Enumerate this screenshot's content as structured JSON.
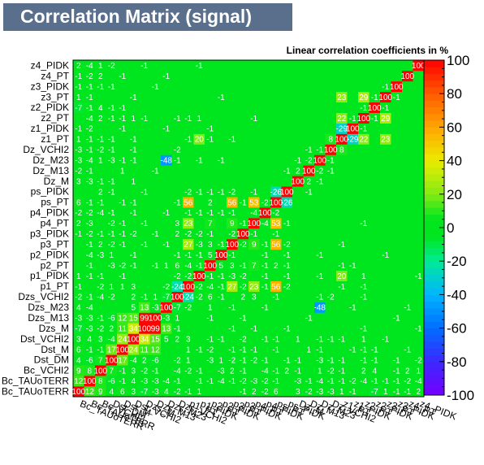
{
  "chart_data": {
    "type": "heatmap",
    "title": "Correlation Matrix (signal)",
    "subtitle": "Linear correlation coefficients in %",
    "variables": [
      "Bc_TAUoTERR",
      "Bc_TAUoTERR",
      "Bc_VCHI2",
      "Dst_DM",
      "Dst_M",
      "Dst_VCHI2",
      "Dzs_M",
      "Dzs_M13",
      "Dzs_M23",
      "Dzs_VCHI2",
      "p1_PT",
      "p1_PIDK",
      "p2_PT",
      "p2_PIDK",
      "p3_PT",
      "p3_PIDK",
      "p4_PT",
      "p4_PIDK",
      "ps_PT",
      "ps_PIDK",
      "Dz_M",
      "Dz_M13",
      "Dz_M23",
      "Dz_VCHI2",
      "z1_PT",
      "z1_PIDK",
      "z2_PT",
      "z2_PIDK",
      "z3_PT",
      "z3_PIDK",
      "z4_PT",
      "z4_PIDK"
    ],
    "y_tick_labels": [
      "z4_PIDK",
      "z4_PT",
      "z3_PIDK",
      "z3_PT",
      "z2_PIDK",
      "z2_PT",
      "z1_PIDK",
      "z1_PT",
      "Dz_VCHI2",
      "Dz_M23",
      "Dz_M13",
      "Dz_M",
      "ps_PIDK",
      "ps_PT",
      "p4_PIDK",
      "p4_PT",
      "p3_PIDK",
      "p3_PT",
      "p2_PIDK",
      "p2_PT",
      "p1_PIDK",
      "p1_PT",
      "Dzs_VCHI2",
      "Dzs_M23",
      "Dzs_M13",
      "Dzs_M",
      "Dst_VCHI2",
      "Dst_M",
      "Dst_DM",
      "Bc_VCHI2",
      "Bc_TAUoTERR",
      "Bc_TAUoTERR"
    ],
    "x_tick_labels": [
      "Bc_TAUoTERR",
      "Bc_TAUoTERR",
      "Bc_VCHI2",
      "Dst_DM",
      "Dst_M",
      "Dst_VCHI2",
      "Dzs_M",
      "Dzs_M13",
      "Dzs_M23",
      "Dzs_VCHI2",
      "p1_PT",
      "p1_PIDK",
      "p2_PT",
      "p2_PIDK",
      "p3_PT",
      "p3_PIDK",
      "p4_PT",
      "p4_PIDK",
      "ps_PT",
      "ps_PIDK",
      "Dz_M",
      "Dz_M13",
      "Dz_M23",
      "Dz_VCHI2",
      "z1_PT",
      "z1_PIDK",
      "z2_PT",
      "z2_PIDK",
      "z3_PT",
      "z3_PIDK",
      "z4_PT",
      "z4_PIDK"
    ],
    "zlim": [
      -100,
      100
    ],
    "colorbar_ticks": [
      100,
      80,
      60,
      40,
      20,
      0,
      -20,
      -40,
      -60,
      -80,
      -100
    ],
    "values": [
      [
        100,
        12,
        9,
        4,
        6,
        3,
        -7,
        -3,
        4,
        -2,
        -1,
        1,
        0,
        0,
        0,
        -1,
        2,
        -2,
        6,
        0,
        3,
        -2,
        -3,
        -3,
        1,
        -1,
        0,
        -7,
        1,
        -1,
        -1,
        2
      ],
      [
        12,
        100,
        8,
        -6,
        -1,
        4,
        -3,
        -3,
        -4,
        -1,
        0,
        -1,
        -1,
        -4,
        -1,
        -2,
        -3,
        -2,
        -1,
        0,
        -3,
        -1,
        -4,
        -1,
        -1,
        -2,
        -4,
        -1,
        -1,
        -1,
        -2,
        -4
      ],
      [
        9,
        8,
        100,
        7,
        -1,
        3,
        -2,
        -1,
        0,
        -4,
        -2,
        -1,
        0,
        -3,
        2,
        -1,
        0,
        -4,
        -1,
        2,
        -1,
        0,
        1,
        -2,
        -1,
        0,
        2,
        4,
        0,
        -1,
        2,
        1
      ],
      [
        4,
        -6,
        7,
        100,
        17,
        -4,
        2,
        -6,
        0,
        -2,
        1,
        0,
        -3,
        1,
        -2,
        -1,
        -2,
        -1,
        0,
        -1,
        -1,
        0,
        -3,
        -1,
        -1,
        0,
        -1,
        -1,
        0,
        -1,
        0,
        -2
      ],
      [
        6,
        -1,
        -1,
        17,
        100,
        24,
        11,
        12,
        0,
        0,
        1,
        -1,
        -2,
        0,
        -1,
        -1,
        -1,
        0,
        -1,
        0,
        0,
        1,
        -1,
        0,
        0,
        -1,
        -1,
        -1,
        0,
        0,
        -1,
        0
      ],
      [
        3,
        4,
        3,
        -4,
        24,
        100,
        34,
        15,
        5,
        2,
        3,
        0,
        -1,
        -1,
        0,
        -2,
        0,
        -1,
        -1,
        0,
        1,
        0,
        -1,
        -1,
        -1,
        0,
        1,
        0,
        -1,
        0,
        0,
        0
      ],
      [
        -7,
        -3,
        -2,
        2,
        11,
        34,
        100,
        99,
        13,
        -1,
        0,
        0,
        0,
        0,
        -1,
        0,
        -1,
        0,
        0,
        -1,
        0,
        0,
        0,
        0,
        0,
        0,
        -1,
        0,
        0,
        0,
        0,
        -1
      ],
      [
        -3,
        -3,
        -1,
        -6,
        12,
        15,
        99,
        100,
        -3,
        1,
        0,
        0,
        -1,
        0,
        0,
        -1,
        0,
        0,
        0,
        0,
        0,
        -1,
        0,
        0,
        0,
        0,
        0,
        0,
        0,
        -1,
        0,
        0
      ],
      [
        4,
        -4,
        0,
        0,
        0,
        5,
        13,
        -3,
        100,
        -7,
        -2,
        0,
        1,
        0,
        -1,
        0,
        0,
        -1,
        0,
        0,
        0,
        0,
        -48,
        0,
        0,
        -1,
        0,
        0,
        0,
        0,
        -1,
        0
      ],
      [
        -2,
        -1,
        -4,
        -2,
        0,
        2,
        -1,
        1,
        -7,
        100,
        -24,
        -2,
        6,
        -1,
        0,
        2,
        3,
        0,
        -1,
        0,
        0,
        0,
        -1,
        -2,
        0,
        0,
        -1,
        0,
        0,
        0,
        0,
        0
      ],
      [
        -1,
        0,
        -2,
        1,
        1,
        3,
        0,
        0,
        -2,
        -24,
        100,
        -2,
        -4,
        -1,
        27,
        -2,
        23,
        -1,
        56,
        -2,
        0,
        0,
        0,
        0,
        -1,
        0,
        -1,
        0,
        0,
        0,
        0,
        0
      ],
      [
        1,
        -1,
        -1,
        0,
        -1,
        0,
        0,
        0,
        0,
        -2,
        -2,
        100,
        -1,
        -1,
        -3,
        -2,
        0,
        -1,
        0,
        -1,
        0,
        0,
        -1,
        0,
        20,
        0,
        1,
        0,
        0,
        0,
        0,
        -1
      ],
      [
        0,
        -1,
        0,
        -3,
        -2,
        -1,
        0,
        -1,
        1,
        6,
        -4,
        -1,
        100,
        5,
        3,
        -1,
        7,
        -1,
        2,
        -1,
        0,
        0,
        0,
        0,
        -1,
        -1,
        0,
        0,
        0,
        0,
        0,
        0
      ],
      [
        0,
        -4,
        -3,
        1,
        0,
        -1,
        0,
        0,
        0,
        -1,
        -1,
        -1,
        5,
        100,
        -1,
        0,
        0,
        -1,
        0,
        -1,
        0,
        0,
        -1,
        0,
        0,
        0,
        0,
        0,
        -1,
        0,
        0,
        0
      ],
      [
        0,
        -1,
        2,
        -2,
        -1,
        0,
        -1,
        0,
        -1,
        0,
        27,
        -3,
        3,
        -1,
        100,
        -2,
        9,
        -1,
        56,
        -2,
        0,
        0,
        0,
        0,
        -1,
        0,
        0,
        0,
        0,
        0,
        0,
        0
      ],
      [
        -1,
        -2,
        -1,
        -1,
        -1,
        -2,
        0,
        -1,
        0,
        2,
        -2,
        -2,
        -1,
        0,
        -2,
        100,
        -1,
        0,
        -1,
        0,
        0,
        0,
        0,
        0,
        0,
        0,
        0,
        0,
        0,
        0,
        0,
        0
      ],
      [
        2,
        -3,
        0,
        -2,
        -1,
        0,
        -1,
        0,
        0,
        3,
        23,
        0,
        7,
        0,
        9,
        -1,
        100,
        -4,
        53,
        -1,
        0,
        0,
        0,
        0,
        0,
        0,
        -1,
        0,
        0,
        0,
        0,
        0
      ],
      [
        -2,
        -2,
        -4,
        -1,
        0,
        -1,
        0,
        0,
        -1,
        0,
        -1,
        -1,
        -1,
        -1,
        -1,
        0,
        -4,
        100,
        -2,
        0,
        0,
        0,
        0,
        0,
        0,
        0,
        0,
        0,
        0,
        0,
        0,
        0
      ],
      [
        6,
        -1,
        -1,
        0,
        -1,
        -1,
        0,
        0,
        0,
        -1,
        56,
        0,
        2,
        0,
        56,
        -1,
        53,
        -2,
        100,
        -26,
        0,
        0,
        0,
        0,
        0,
        0,
        0,
        0,
        0,
        0,
        0,
        0
      ],
      [
        0,
        0,
        2,
        -1,
        0,
        0,
        -1,
        0,
        0,
        0,
        -2,
        -1,
        -1,
        -1,
        -2,
        0,
        -1,
        0,
        -26,
        100,
        0,
        -1,
        0,
        0,
        0,
        0,
        0,
        0,
        0,
        0,
        0,
        0
      ],
      [
        3,
        -3,
        -1,
        -1,
        0,
        1,
        0,
        0,
        0,
        0,
        0,
        0,
        0,
        0,
        0,
        0,
        0,
        0,
        0,
        0,
        100,
        2,
        -1,
        0,
        0,
        0,
        0,
        0,
        0,
        0,
        0,
        0
      ],
      [
        -2,
        -1,
        0,
        0,
        1,
        0,
        0,
        -1,
        0,
        0,
        0,
        0,
        0,
        0,
        0,
        0,
        0,
        0,
        0,
        -1,
        2,
        100,
        -2,
        -1,
        0,
        0,
        0,
        0,
        0,
        0,
        0,
        0
      ],
      [
        -3,
        -4,
        1,
        -3,
        -1,
        -1,
        0,
        0,
        -48,
        -1,
        0,
        -1,
        0,
        -1,
        0,
        0,
        0,
        0,
        0,
        0,
        -1,
        -2,
        100,
        -1,
        0,
        0,
        0,
        0,
        0,
        0,
        0,
        0
      ],
      [
        -3,
        -1,
        -2,
        -1,
        0,
        -1,
        0,
        0,
        0,
        -2,
        0,
        0,
        0,
        0,
        0,
        0,
        0,
        0,
        0,
        0,
        0,
        -1,
        -1,
        100,
        8,
        0,
        0,
        0,
        0,
        0,
        0,
        0
      ],
      [
        1,
        -1,
        -1,
        -1,
        0,
        -1,
        0,
        0,
        0,
        0,
        -1,
        20,
        -1,
        0,
        -1,
        0,
        0,
        0,
        0,
        0,
        0,
        0,
        0,
        8,
        100,
        -29,
        22,
        0,
        23,
        0,
        0,
        0
      ],
      [
        -1,
        -2,
        0,
        0,
        -1,
        0,
        0,
        0,
        -1,
        0,
        0,
        0,
        -1,
        0,
        0,
        0,
        0,
        0,
        0,
        0,
        0,
        0,
        0,
        0,
        -29,
        100,
        -1,
        0,
        0,
        0,
        0,
        0
      ],
      [
        0,
        -4,
        2,
        -1,
        -1,
        1,
        -1,
        0,
        0,
        -1,
        -1,
        1,
        0,
        0,
        0,
        0,
        -1,
        0,
        0,
        0,
        0,
        0,
        0,
        0,
        22,
        -1,
        100,
        -1,
        29,
        0,
        0,
        0
      ],
      [
        -7,
        -1,
        4,
        -1,
        -1,
        0,
        0,
        0,
        0,
        0,
        0,
        0,
        0,
        0,
        0,
        0,
        0,
        0,
        0,
        0,
        0,
        0,
        0,
        0,
        0,
        0,
        -1,
        100,
        -1,
        0,
        0,
        0
      ],
      [
        1,
        -1,
        0,
        0,
        0,
        -1,
        0,
        0,
        0,
        0,
        0,
        0,
        0,
        -1,
        0,
        0,
        0,
        0,
        0,
        0,
        0,
        0,
        0,
        0,
        23,
        0,
        29,
        -1,
        100,
        -1,
        0,
        0
      ],
      [
        -1,
        -1,
        -1,
        -1,
        0,
        0,
        0,
        -1,
        0,
        0,
        0,
        0,
        0,
        0,
        0,
        0,
        0,
        0,
        0,
        0,
        0,
        0,
        0,
        0,
        0,
        0,
        0,
        0,
        -1,
        100,
        0,
        0
      ],
      [
        -1,
        -2,
        2,
        0,
        -1,
        0,
        0,
        0,
        -1,
        0,
        0,
        0,
        0,
        0,
        0,
        0,
        0,
        0,
        0,
        0,
        0,
        0,
        0,
        0,
        0,
        0,
        0,
        0,
        0,
        0,
        100,
        0
      ],
      [
        2,
        -4,
        1,
        -2,
        0,
        0,
        -1,
        0,
        0,
        0,
        0,
        -1,
        0,
        0,
        0,
        0,
        0,
        0,
        0,
        0,
        0,
        0,
        0,
        0,
        0,
        0,
        0,
        0,
        0,
        0,
        0,
        100
      ]
    ]
  }
}
